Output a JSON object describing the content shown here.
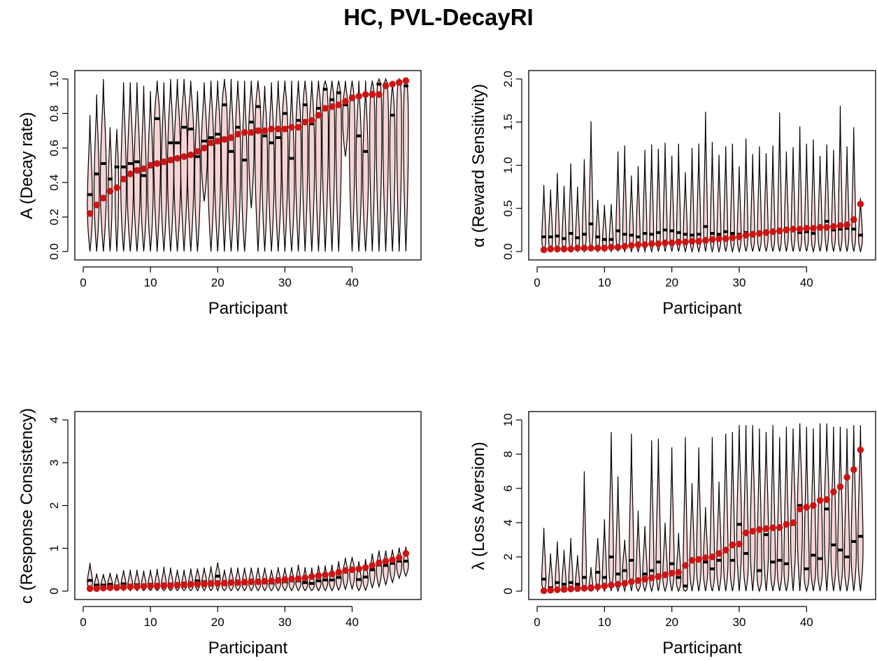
{
  "title": "HC, PVL-DecayRI",
  "colors": {
    "violin_fill": "#f7d4d4",
    "violin_stroke": "#000000",
    "point": "#cc1414",
    "median_mark": "#000000"
  },
  "chart_data": [
    {
      "type": "violin",
      "xlabel": "Participant",
      "ylabel": "A (Decay rate)",
      "xlim": [
        0,
        49
      ],
      "ylim": [
        0,
        1
      ],
      "xticks": [
        0,
        10,
        20,
        30,
        40
      ],
      "yticks": [
        "0.0",
        "0.2",
        "0.4",
        "0.6",
        "0.8",
        "1.0"
      ],
      "x": [
        1,
        2,
        3,
        4,
        5,
        6,
        7,
        8,
        9,
        10,
        11,
        12,
        13,
        14,
        15,
        16,
        17,
        18,
        19,
        20,
        21,
        22,
        23,
        24,
        25,
        26,
        27,
        28,
        29,
        30,
        31,
        32,
        33,
        34,
        35,
        36,
        37,
        38,
        39,
        40,
        41,
        42,
        43,
        44,
        45,
        46,
        47,
        48
      ],
      "points": [
        0.22,
        0.27,
        0.31,
        0.35,
        0.37,
        0.42,
        0.45,
        0.47,
        0.48,
        0.5,
        0.51,
        0.52,
        0.53,
        0.54,
        0.55,
        0.56,
        0.58,
        0.6,
        0.63,
        0.64,
        0.65,
        0.66,
        0.68,
        0.69,
        0.69,
        0.7,
        0.7,
        0.71,
        0.71,
        0.71,
        0.72,
        0.72,
        0.75,
        0.76,
        0.79,
        0.83,
        0.84,
        0.85,
        0.87,
        0.89,
        0.9,
        0.91,
        0.91,
        0.91,
        0.96,
        0.97,
        0.98,
        0.99
      ],
      "medians": [
        0.33,
        0.45,
        0.51,
        0.42,
        0.49,
        0.49,
        0.51,
        0.52,
        0.44,
        0.49,
        0.77,
        0.52,
        0.63,
        0.63,
        0.72,
        0.71,
        0.55,
        0.64,
        0.66,
        0.68,
        0.85,
        0.58,
        0.72,
        0.53,
        0.75,
        0.84,
        0.67,
        0.63,
        0.66,
        0.8,
        0.54,
        0.76,
        0.85,
        0.74,
        0.83,
        0.94,
        0.88,
        0.92,
        0.85,
        0.9,
        0.67,
        0.58,
        0.92,
        0.97,
        0.97,
        0.79,
        0.97,
        0.96
      ],
      "vmin": [
        0.0,
        0.0,
        0.0,
        0.0,
        0.0,
        0.0,
        0.0,
        0.0,
        0.0,
        0.0,
        0.0,
        0.0,
        0.0,
        0.0,
        0.0,
        0.0,
        0.0,
        0.29,
        0.0,
        0.0,
        0.0,
        0.0,
        0.0,
        0.0,
        0.25,
        0.0,
        0.0,
        0.0,
        0.0,
        0.0,
        0.0,
        0.0,
        0.0,
        0.0,
        0.0,
        0.0,
        0.0,
        0.0,
        0.55,
        0.0,
        0.0,
        0.0,
        0.0,
        0.0,
        0.0,
        0.0,
        0.0,
        0.0
      ],
      "vmax": [
        0.79,
        0.91,
        1.0,
        0.72,
        0.71,
        0.98,
        0.98,
        0.98,
        0.96,
        0.93,
        0.99,
        0.98,
        1.0,
        1.0,
        1.0,
        0.99,
        0.93,
        0.98,
        0.99,
        0.99,
        1.0,
        1.0,
        0.99,
        0.99,
        0.99,
        0.99,
        0.96,
        0.98,
        0.99,
        0.99,
        0.99,
        0.99,
        0.99,
        0.99,
        0.99,
        0.99,
        0.99,
        0.99,
        0.99,
        0.99,
        0.99,
        0.99,
        0.99,
        1.0,
        1.0,
        0.99,
        1.0,
        1.0
      ],
      "vwidth": [
        0.42,
        0.42,
        0.5,
        0.32,
        0.3,
        0.45,
        0.5,
        0.5,
        0.45,
        0.45,
        0.55,
        0.45,
        0.5,
        0.55,
        0.55,
        0.55,
        0.45,
        0.5,
        0.5,
        0.5,
        0.5,
        0.5,
        0.45,
        0.45,
        0.45,
        0.5,
        0.45,
        0.45,
        0.5,
        0.5,
        0.45,
        0.45,
        0.45,
        0.45,
        0.45,
        0.5,
        0.45,
        0.45,
        0.45,
        0.45,
        0.45,
        0.45,
        0.42,
        0.45,
        0.45,
        0.42,
        0.4,
        0.4
      ]
    },
    {
      "type": "violin",
      "xlabel": "Participant",
      "ylabel": "α (Reward Sensitivity)",
      "xlim": [
        0,
        49
      ],
      "ylim": [
        0,
        2
      ],
      "xticks": [
        0,
        10,
        20,
        30,
        40
      ],
      "yticks": [
        "0.0",
        "0.5",
        "1.0",
        "1.5",
        "2.0"
      ],
      "x": [
        1,
        2,
        3,
        4,
        5,
        6,
        7,
        8,
        9,
        10,
        11,
        12,
        13,
        14,
        15,
        16,
        17,
        18,
        19,
        20,
        21,
        22,
        23,
        24,
        25,
        26,
        27,
        28,
        29,
        30,
        31,
        32,
        33,
        34,
        35,
        36,
        37,
        38,
        39,
        40,
        41,
        42,
        43,
        44,
        45,
        46,
        47,
        48
      ],
      "points": [
        0.02,
        0.03,
        0.03,
        0.03,
        0.03,
        0.04,
        0.04,
        0.04,
        0.04,
        0.04,
        0.05,
        0.05,
        0.06,
        0.07,
        0.08,
        0.08,
        0.09,
        0.09,
        0.1,
        0.1,
        0.11,
        0.11,
        0.12,
        0.12,
        0.13,
        0.14,
        0.15,
        0.15,
        0.16,
        0.17,
        0.19,
        0.2,
        0.21,
        0.22,
        0.23,
        0.24,
        0.25,
        0.26,
        0.26,
        0.27,
        0.27,
        0.28,
        0.28,
        0.29,
        0.3,
        0.31,
        0.37,
        0.55
      ],
      "medians": [
        0.17,
        0.17,
        0.18,
        0.15,
        0.21,
        0.16,
        0.2,
        0.32,
        0.17,
        0.14,
        0.14,
        0.24,
        0.2,
        0.19,
        0.17,
        0.21,
        0.2,
        0.22,
        0.25,
        0.24,
        0.22,
        0.2,
        0.19,
        0.2,
        0.29,
        0.21,
        0.2,
        0.23,
        0.21,
        0.2,
        0.22,
        0.22,
        0.22,
        0.22,
        0.23,
        0.24,
        0.27,
        0.26,
        0.22,
        0.23,
        0.21,
        0.26,
        0.35,
        0.25,
        0.26,
        0.27,
        0.26,
        0.19
      ],
      "vmin": [
        0,
        0,
        0,
        0,
        0,
        0,
        0,
        0,
        0,
        0,
        0,
        0,
        0,
        0,
        0,
        0,
        0,
        0,
        0,
        0,
        0,
        0,
        0,
        0,
        0,
        0,
        0,
        0,
        0,
        0,
        0,
        0,
        0,
        0,
        0,
        0,
        0,
        0,
        0,
        0,
        0,
        0,
        0,
        0,
        0,
        0,
        0,
        0
      ],
      "vmax": [
        0.77,
        0.72,
        0.91,
        0.76,
        1.02,
        0.75,
        1.07,
        1.51,
        0.6,
        0.54,
        0.55,
        1.16,
        1.23,
        0.88,
        0.99,
        1.18,
        1.24,
        1.19,
        1.26,
        1.11,
        1.25,
        0.92,
        1.2,
        1.25,
        1.62,
        1.27,
        1.12,
        1.22,
        1.25,
        0.99,
        1.31,
        1.13,
        1.22,
        1.14,
        1.23,
        1.61,
        1.16,
        1.21,
        1.45,
        1.25,
        1.3,
        1.11,
        1.24,
        1.18,
        1.69,
        1.22,
        1.44,
        0.62
      ],
      "vwidth": [
        0.32,
        0.32,
        0.32,
        0.32,
        0.32,
        0.32,
        0.32,
        0.32,
        0.32,
        0.32,
        0.32,
        0.32,
        0.32,
        0.32,
        0.32,
        0.32,
        0.32,
        0.32,
        0.32,
        0.32,
        0.32,
        0.32,
        0.32,
        0.32,
        0.32,
        0.32,
        0.32,
        0.32,
        0.32,
        0.32,
        0.32,
        0.32,
        0.32,
        0.32,
        0.32,
        0.32,
        0.32,
        0.32,
        0.32,
        0.32,
        0.32,
        0.32,
        0.32,
        0.32,
        0.32,
        0.32,
        0.32,
        0.32
      ]
    },
    {
      "type": "violin",
      "xlabel": "Participant",
      "ylabel": "c (Response Consistency)",
      "xlim": [
        0,
        49
      ],
      "ylim": [
        0,
        4
      ],
      "xticks": [
        0,
        10,
        20,
        30,
        40
      ],
      "yticks": [
        "0",
        "1",
        "2",
        "3",
        "4"
      ],
      "x": [
        1,
        2,
        3,
        4,
        5,
        6,
        7,
        8,
        9,
        10,
        11,
        12,
        13,
        14,
        15,
        16,
        17,
        18,
        19,
        20,
        21,
        22,
        23,
        24,
        25,
        26,
        27,
        28,
        29,
        30,
        31,
        32,
        33,
        34,
        35,
        36,
        37,
        38,
        39,
        40,
        41,
        42,
        43,
        44,
        45,
        46,
        47,
        48
      ],
      "points": [
        0.06,
        0.06,
        0.07,
        0.08,
        0.08,
        0.09,
        0.1,
        0.1,
        0.11,
        0.12,
        0.12,
        0.13,
        0.13,
        0.14,
        0.15,
        0.16,
        0.16,
        0.17,
        0.18,
        0.18,
        0.19,
        0.2,
        0.2,
        0.21,
        0.22,
        0.22,
        0.23,
        0.24,
        0.25,
        0.27,
        0.28,
        0.29,
        0.31,
        0.34,
        0.36,
        0.38,
        0.4,
        0.44,
        0.48,
        0.5,
        0.52,
        0.55,
        0.6,
        0.66,
        0.7,
        0.73,
        0.78,
        0.88
      ],
      "medians": [
        0.25,
        0.14,
        0.14,
        0.16,
        0.12,
        0.17,
        0.14,
        0.15,
        0.14,
        0.16,
        0.14,
        0.15,
        0.16,
        0.17,
        0.15,
        0.16,
        0.24,
        0.22,
        0.2,
        0.35,
        0.17,
        0.2,
        0.2,
        0.2,
        0.23,
        0.21,
        0.22,
        0.19,
        0.24,
        0.22,
        0.24,
        0.24,
        0.2,
        0.18,
        0.24,
        0.26,
        0.26,
        0.32,
        0.46,
        0.53,
        0.27,
        0.33,
        0.5,
        0.61,
        0.6,
        0.65,
        0.7,
        0.7
      ],
      "vmin": [
        0.01,
        0.01,
        0.01,
        0.01,
        0.01,
        0.01,
        0.01,
        0.01,
        0.01,
        0.01,
        0.01,
        0.01,
        0.01,
        0.01,
        0.01,
        0.01,
        0.01,
        0.01,
        0.01,
        0.01,
        0.01,
        0.01,
        0.01,
        0.01,
        0.01,
        0.01,
        0.01,
        0.01,
        0.01,
        0.01,
        0.01,
        0.01,
        0.01,
        0.01,
        0.01,
        0.01,
        0.01,
        0.02,
        0.04,
        0.05,
        0.01,
        0.02,
        0.08,
        0.1,
        0.15,
        0.2,
        0.3,
        0.35
      ],
      "vmax": [
        0.66,
        0.41,
        0.4,
        0.43,
        0.4,
        0.49,
        0.5,
        0.5,
        0.48,
        0.5,
        0.52,
        0.57,
        0.55,
        0.5,
        0.5,
        0.53,
        0.53,
        0.55,
        0.58,
        0.67,
        0.5,
        0.55,
        0.55,
        0.55,
        0.55,
        0.55,
        0.55,
        0.5,
        0.56,
        0.55,
        0.56,
        0.62,
        0.56,
        0.55,
        0.6,
        0.6,
        0.62,
        0.7,
        0.78,
        0.8,
        0.7,
        0.75,
        0.88,
        0.95,
        0.95,
        0.97,
        1.02,
        1.04
      ],
      "vwidth": [
        0.42,
        0.42,
        0.42,
        0.42,
        0.42,
        0.42,
        0.42,
        0.42,
        0.42,
        0.42,
        0.42,
        0.42,
        0.42,
        0.42,
        0.42,
        0.42,
        0.42,
        0.42,
        0.42,
        0.42,
        0.42,
        0.42,
        0.42,
        0.42,
        0.42,
        0.42,
        0.42,
        0.42,
        0.42,
        0.42,
        0.42,
        0.42,
        0.42,
        0.42,
        0.42,
        0.42,
        0.42,
        0.42,
        0.42,
        0.42,
        0.42,
        0.42,
        0.42,
        0.42,
        0.42,
        0.42,
        0.42,
        0.42
      ]
    },
    {
      "type": "violin",
      "xlabel": "Participant",
      "ylabel": "λ (Loss Aversion)",
      "xlim": [
        0,
        49
      ],
      "ylim": [
        0,
        10
      ],
      "xticks": [
        0,
        10,
        20,
        30,
        40
      ],
      "yticks": [
        "0",
        "2",
        "4",
        "6",
        "8",
        "10"
      ],
      "x": [
        1,
        2,
        3,
        4,
        5,
        6,
        7,
        8,
        9,
        10,
        11,
        12,
        13,
        14,
        15,
        16,
        17,
        18,
        19,
        20,
        21,
        22,
        23,
        24,
        25,
        26,
        27,
        28,
        29,
        30,
        31,
        32,
        33,
        34,
        35,
        36,
        37,
        38,
        39,
        40,
        41,
        42,
        43,
        44,
        45,
        46,
        47,
        48
      ],
      "points": [
        0.02,
        0.05,
        0.08,
        0.1,
        0.13,
        0.15,
        0.17,
        0.2,
        0.25,
        0.3,
        0.35,
        0.4,
        0.45,
        0.55,
        0.62,
        0.7,
        0.78,
        0.85,
        0.95,
        1.05,
        1.1,
        1.5,
        1.8,
        1.85,
        1.95,
        2.0,
        2.2,
        2.4,
        2.7,
        2.75,
        3.4,
        3.5,
        3.6,
        3.65,
        3.7,
        3.72,
        3.9,
        4.0,
        4.8,
        4.9,
        5.0,
        5.3,
        5.35,
        5.8,
        6.1,
        6.65,
        7.1,
        8.25
      ],
      "medians": [
        0.7,
        0.2,
        0.5,
        0.4,
        0.5,
        0.4,
        0.8,
        0.1,
        1.1,
        0.8,
        2.0,
        1.0,
        1.2,
        1.8,
        0.6,
        1.0,
        1.2,
        1.7,
        1.0,
        1.6,
        0.8,
        0.3,
        1.8,
        1.9,
        1.7,
        1.3,
        1.8,
        2.3,
        1.8,
        3.9,
        2.2,
        3.5,
        1.2,
        3.3,
        1.7,
        1.8,
        1.6,
        3.9,
        5.0,
        1.3,
        2.1,
        1.9,
        4.8,
        2.7,
        2.4,
        2.0,
        2.9,
        3.2
      ],
      "vmin": [
        0,
        0,
        0,
        0,
        0,
        0,
        0,
        0,
        0,
        0,
        0,
        0,
        0,
        0,
        0,
        0,
        0,
        0,
        0,
        0,
        0,
        0,
        0,
        0,
        0,
        0,
        0,
        0,
        0,
        0,
        0,
        0,
        0,
        0,
        0,
        0,
        0,
        0,
        0,
        0,
        0,
        0,
        0,
        0,
        0,
        0,
        0,
        0
      ],
      "vmax": [
        3.7,
        2.2,
        2.9,
        2.4,
        3.1,
        2.1,
        7.0,
        1.4,
        3.1,
        4.2,
        9.3,
        6.7,
        3.0,
        9.2,
        4.7,
        3.8,
        8.8,
        8.9,
        4.0,
        8.4,
        3.4,
        9.0,
        6.3,
        8.4,
        4.9,
        9.0,
        6.4,
        9.2,
        9.3,
        9.7,
        9.7,
        9.7,
        9.5,
        9.3,
        9.7,
        9.0,
        9.6,
        9.5,
        9.8,
        9.6,
        9.5,
        9.8,
        9.8,
        9.6,
        9.6,
        9.5,
        9.7,
        9.7
      ],
      "vwidth": [
        0.35,
        0.35,
        0.35,
        0.35,
        0.35,
        0.35,
        0.35,
        0.35,
        0.35,
        0.35,
        0.38,
        0.38,
        0.38,
        0.38,
        0.38,
        0.38,
        0.38,
        0.38,
        0.38,
        0.38,
        0.38,
        0.38,
        0.38,
        0.38,
        0.38,
        0.38,
        0.38,
        0.38,
        0.38,
        0.4,
        0.4,
        0.4,
        0.4,
        0.4,
        0.4,
        0.4,
        0.4,
        0.4,
        0.42,
        0.42,
        0.42,
        0.42,
        0.42,
        0.42,
        0.42,
        0.42,
        0.42,
        0.42
      ]
    }
  ]
}
